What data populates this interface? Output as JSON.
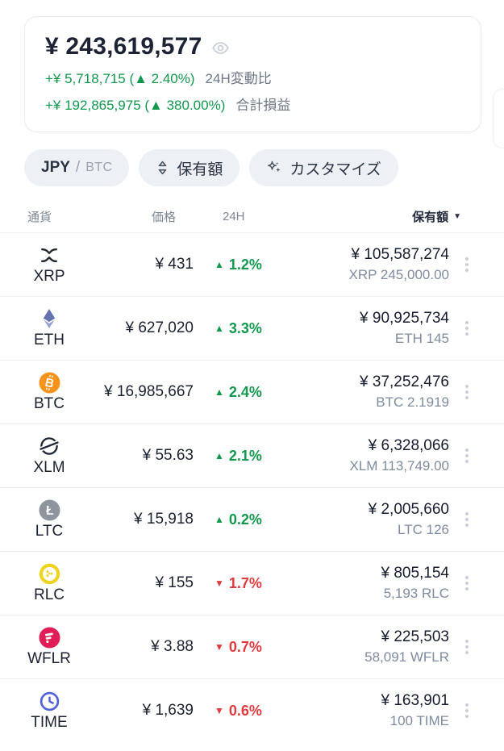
{
  "colors": {
    "green": "#12984e",
    "red": "#e13a3e",
    "xrp_dark": "#23292f",
    "eth_top": "#6672ae",
    "eth_bottom": "#98a4d4",
    "btc_orange": "#f7931a",
    "xlm_dark": "#1d2532",
    "ltc_gray": "#8f959e",
    "rlc_yellow": "#efd41f",
    "wflr_pink": "#e11d55",
    "time_blue": "#5163d8"
  },
  "summary": {
    "total_value": "¥ 243,619,577",
    "change_24h": {
      "value": "+¥ 5,718,715 (▲ 2.40%)",
      "label": "24H変動比"
    },
    "total_profit": {
      "value": "+¥ 192,865,975 (▲ 380.00%)",
      "label": "合計損益"
    }
  },
  "filters": {
    "currency_primary": "JPY",
    "currency_separator": "/",
    "currency_secondary": "BTC",
    "sort_label": "保有額",
    "customize_label": "カスタマイズ"
  },
  "table": {
    "header": {
      "currency": "通貨",
      "price": "価格",
      "change_24h": "24H",
      "holdings": "保有額",
      "sort_arrow": "▼"
    },
    "rows": [
      {
        "symbol": "XRP",
        "icon": "xrp-icon",
        "price": "¥ 431",
        "direction": "up",
        "change_pct": "1.2%",
        "value": "¥ 105,587,274",
        "amount": "XRP 245,000.00"
      },
      {
        "symbol": "ETH",
        "icon": "eth-icon",
        "price": "¥ 627,020",
        "direction": "up",
        "change_pct": "3.3%",
        "value": "¥ 90,925,734",
        "amount": "ETH 145"
      },
      {
        "symbol": "BTC",
        "icon": "btc-icon",
        "price": "¥ 16,985,667",
        "direction": "up",
        "change_pct": "2.4%",
        "value": "¥ 37,252,476",
        "amount": "BTC 2.1919"
      },
      {
        "symbol": "XLM",
        "icon": "xlm-icon",
        "price": "¥ 55.63",
        "direction": "up",
        "change_pct": "2.1%",
        "value": "¥ 6,328,066",
        "amount": "XLM 113,749.00"
      },
      {
        "symbol": "LTC",
        "icon": "ltc-icon",
        "price": "¥ 15,918",
        "direction": "up",
        "change_pct": "0.2%",
        "value": "¥ 2,005,660",
        "amount": "LTC 126"
      },
      {
        "symbol": "RLC",
        "icon": "rlc-icon",
        "price": "¥ 155",
        "direction": "down",
        "change_pct": "1.7%",
        "value": "¥ 805,154",
        "amount": "5,193 RLC"
      },
      {
        "symbol": "WFLR",
        "icon": "wflr-icon",
        "price": "¥ 3.88",
        "direction": "down",
        "change_pct": "0.7%",
        "value": "¥ 225,503",
        "amount": "58,091 WFLR"
      },
      {
        "symbol": "TIME",
        "icon": "time-icon",
        "price": "¥ 1,639",
        "direction": "down",
        "change_pct": "0.6%",
        "value": "¥ 163,901",
        "amount": "100 TIME"
      }
    ]
  }
}
